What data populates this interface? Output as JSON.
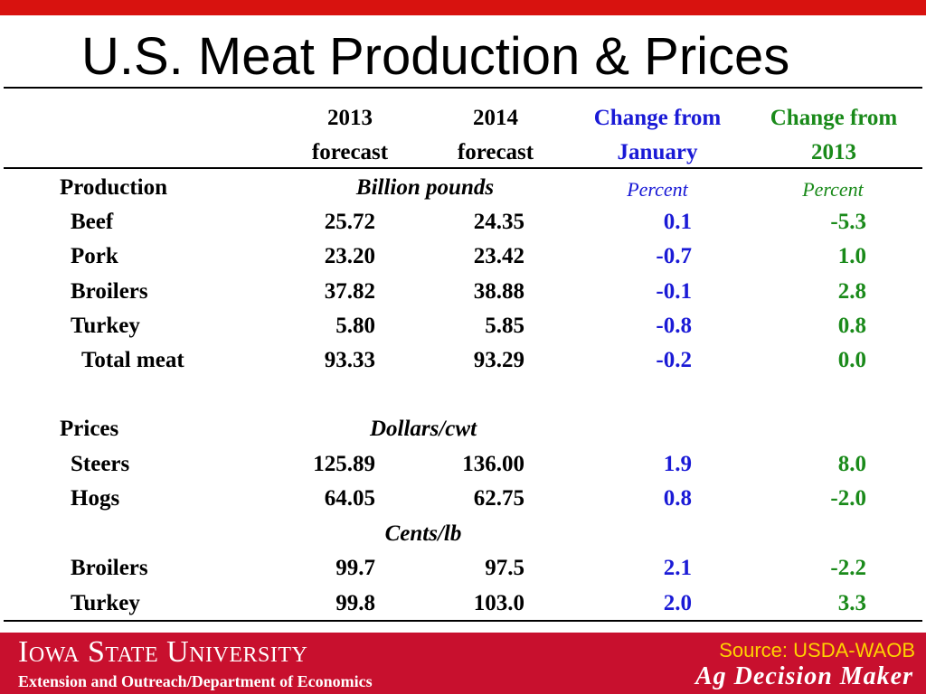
{
  "title": "U.S. Meat Production & Prices",
  "colors": {
    "top_bar": "#d8120f",
    "footer": "#c8102e",
    "change_from_january": "#1a1ad6",
    "change_from_2013": "#1a8a1a",
    "source_text": "#ffd200"
  },
  "table": {
    "headers": {
      "col_2013": [
        "2013",
        "forecast"
      ],
      "col_2014": [
        "2014",
        "forecast"
      ],
      "change_january": [
        "Change from",
        "January"
      ],
      "change_2013": [
        "Change from",
        "2013"
      ]
    },
    "production": {
      "label": "Production",
      "unit": "Billion pounds",
      "pct_jan": "Percent",
      "pct_2013": "Percent",
      "rows": [
        {
          "label": "Beef",
          "v2013": "25.72",
          "v2014": "24.35",
          "jan": "0.1",
          "yr": "-5.3"
        },
        {
          "label": "Pork",
          "v2013": "23.20",
          "v2014": "23.42",
          "jan": "-0.7",
          "yr": "1.0"
        },
        {
          "label": "Broilers",
          "v2013": "37.82",
          "v2014": "38.88",
          "jan": "-0.1",
          "yr": "2.8"
        },
        {
          "label": "Turkey",
          "v2013": "5.80",
          "v2014": "5.85",
          "jan": "-0.8",
          "yr": "0.8"
        },
        {
          "label": "Total meat",
          "v2013": "93.33",
          "v2014": "93.29",
          "jan": "-0.2",
          "yr": "0.0"
        }
      ]
    },
    "prices": {
      "label": "Prices",
      "unit_dollars": "Dollars/cwt",
      "unit_cents": "Cents/lb",
      "rows": [
        {
          "label": "Steers",
          "v2013": "125.89",
          "v2014": "136.00",
          "jan": "1.9",
          "yr": "8.0"
        },
        {
          "label": "Hogs",
          "v2013": "64.05",
          "v2014": "62.75",
          "jan": "0.8",
          "yr": "-2.0"
        },
        {
          "label": "Broilers",
          "v2013": "99.7",
          "v2014": "97.5",
          "jan": "2.1",
          "yr": "-2.2"
        },
        {
          "label": "Turkey",
          "v2013": "99.8",
          "v2014": "103.0",
          "jan": "2.0",
          "yr": "3.3"
        }
      ]
    }
  },
  "footer": {
    "university": "Iowa State University",
    "department": "Extension and Outreach/Department of Economics",
    "source": "Source: USDA-WAOB",
    "brand": "Ag Decision Maker"
  }
}
